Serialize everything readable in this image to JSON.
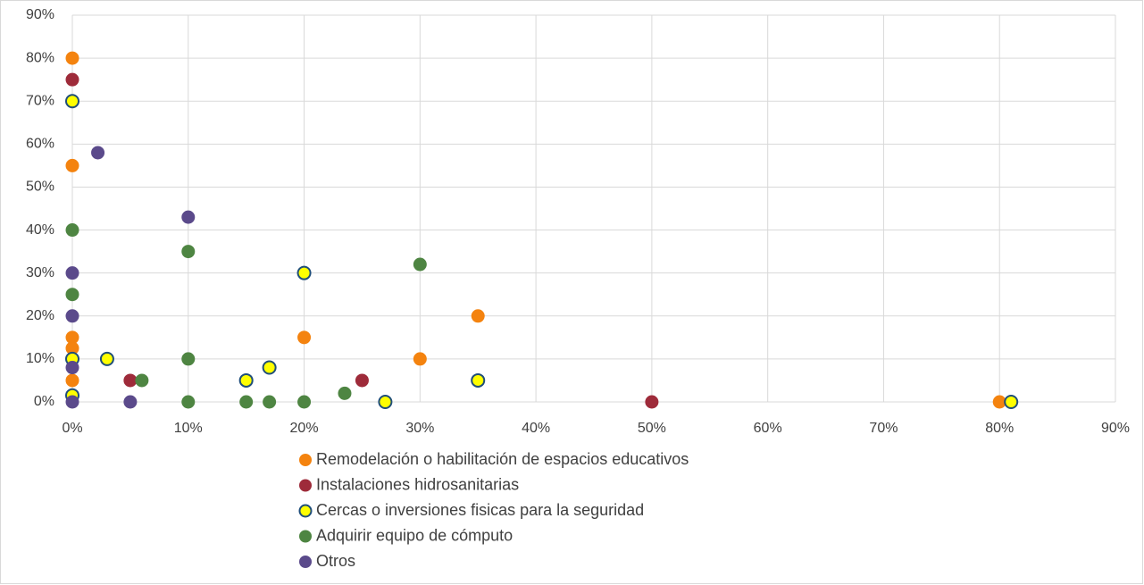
{
  "chart_data": {
    "type": "scatter",
    "xlim": [
      0,
      90
    ],
    "ylim": [
      0,
      90
    ],
    "xticks": [
      {
        "value": 0,
        "label": "0%"
      },
      {
        "value": 10,
        "label": "10%"
      },
      {
        "value": 20,
        "label": "20%"
      },
      {
        "value": 30,
        "label": "30%"
      },
      {
        "value": 40,
        "label": "40%"
      },
      {
        "value": 50,
        "label": "50%"
      },
      {
        "value": 60,
        "label": "60%"
      },
      {
        "value": 70,
        "label": "70%"
      },
      {
        "value": 80,
        "label": "80%"
      },
      {
        "value": 90,
        "label": "90%"
      }
    ],
    "yticks": [
      {
        "value": 0,
        "label": "0%"
      },
      {
        "value": 10,
        "label": "10%"
      },
      {
        "value": 20,
        "label": "20%"
      },
      {
        "value": 30,
        "label": "30%"
      },
      {
        "value": 40,
        "label": "40%"
      },
      {
        "value": 50,
        "label": "50%"
      },
      {
        "value": 60,
        "label": "60%"
      },
      {
        "value": 70,
        "label": "70%"
      },
      {
        "value": 80,
        "label": "80%"
      },
      {
        "value": 90,
        "label": "90%"
      }
    ],
    "grid": true,
    "legend": "bottom",
    "series": [
      {
        "name": "Remodelación o habilitación de espacios educativos",
        "color": "#f4830f",
        "x": [
          0,
          0,
          0,
          0,
          0,
          20,
          30,
          35,
          80
        ],
        "values": [
          80,
          55,
          15,
          12.5,
          5,
          15,
          10,
          20,
          0
        ]
      },
      {
        "name": "Instalaciones hidrosanitarias",
        "color": "#9e2b3a",
        "x": [
          0,
          5,
          25,
          50
        ],
        "values": [
          75,
          5,
          5,
          0
        ]
      },
      {
        "name": "Cercas o inversiones fisicas para la seguridad",
        "color": "#ffff00",
        "edgecolor": "#1f4e79",
        "x": [
          0,
          0,
          0,
          3,
          15,
          17,
          20,
          27,
          35,
          81
        ],
        "values": [
          70,
          10,
          1.5,
          10,
          5,
          8,
          30,
          0,
          5,
          0
        ]
      },
      {
        "name": "Adquirir equipo de cómputo",
        "color": "#4e8542",
        "x": [
          0,
          0,
          6,
          10,
          10,
          10,
          15,
          17,
          20,
          23.5,
          30
        ],
        "values": [
          40,
          25,
          5,
          35,
          10,
          0,
          0,
          0,
          0,
          2,
          32
        ]
      },
      {
        "name": "Otros",
        "color": "#5b4a8b",
        "x": [
          0,
          0,
          0,
          0,
          2.2,
          5,
          10
        ],
        "values": [
          30,
          20,
          8,
          0,
          58,
          0,
          43
        ]
      }
    ]
  }
}
